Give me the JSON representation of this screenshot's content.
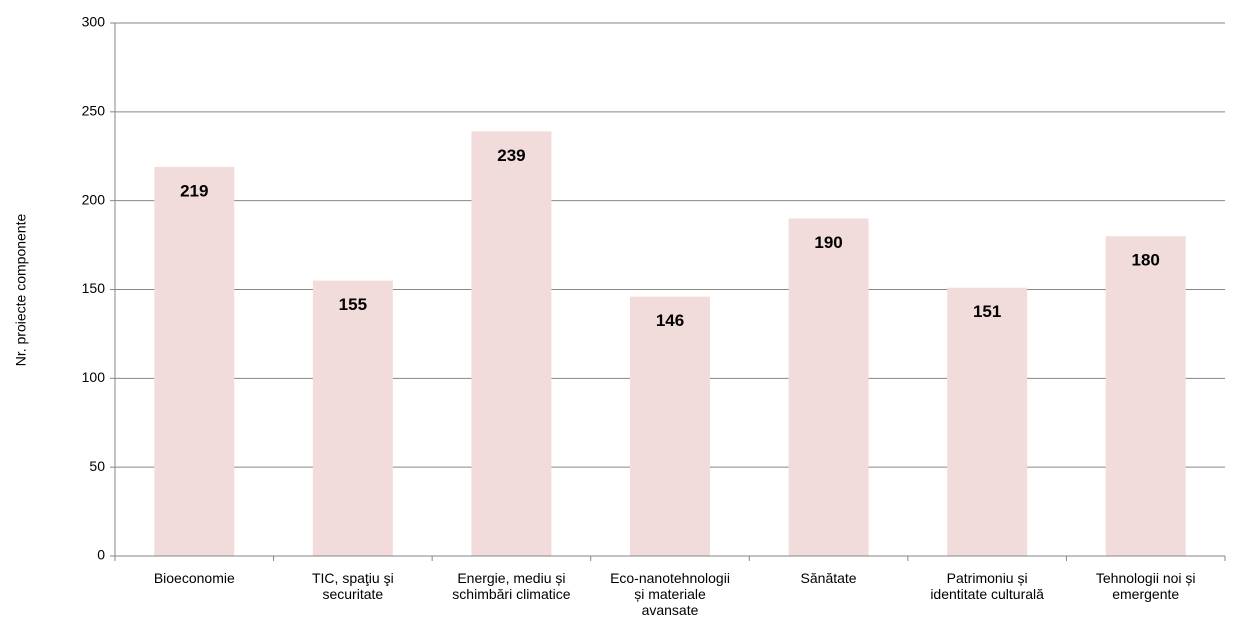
{
  "chart_data": {
    "type": "bar",
    "y_label": "Nr. proiecte componente",
    "categories": [
      "Bioeconomie",
      "TIC, spaţiu şi securitate",
      "Energie, mediu și schimbări climatice",
      "Eco-nanotehnologii și materiale avansate",
      "Sănătate",
      "Patrimoniu și identitate culturală",
      "Tehnologii noi și emergente"
    ],
    "values": [
      219,
      155,
      239,
      146,
      190,
      151,
      180
    ],
    "color": "#f2dcdb",
    "ylim": [
      0,
      300
    ],
    "yticks": [
      0,
      50,
      100,
      150,
      200,
      250,
      300
    ],
    "grid": true
  }
}
